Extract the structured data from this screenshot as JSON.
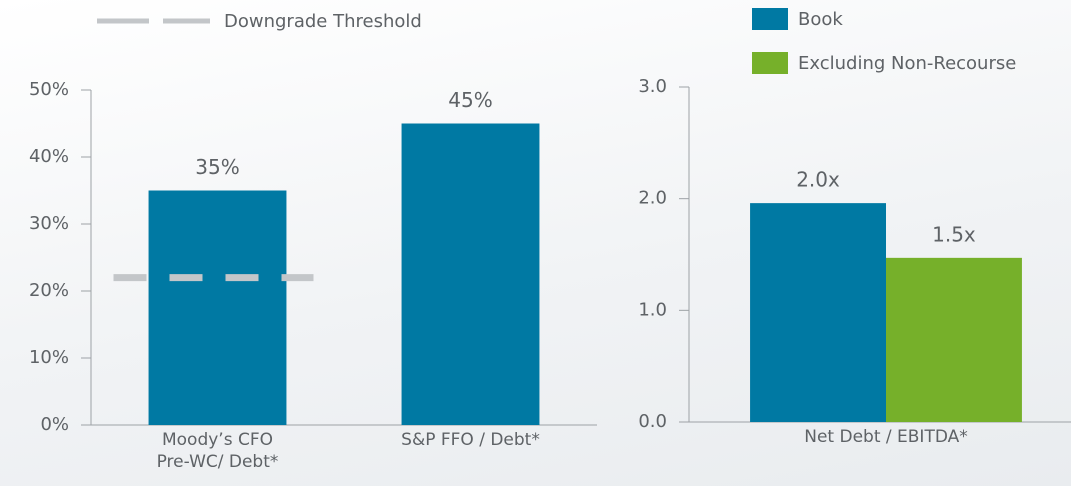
{
  "chart_data": [
    {
      "type": "bar",
      "categories": [
        "Moody’s CFO\nPre-WC/ Debt*",
        "S&P FFO / Debt*"
      ],
      "values": [
        35,
        45
      ],
      "value_labels": [
        "35%",
        "45%"
      ],
      "color": "#0079a3",
      "ylim": [
        0,
        50
      ],
      "yticks": [
        {
          "value": 0,
          "label": "0%"
        },
        {
          "value": 10,
          "label": "10%"
        },
        {
          "value": 20,
          "label": "20%"
        },
        {
          "value": 30,
          "label": "30%"
        },
        {
          "value": 40,
          "label": "40%"
        },
        {
          "value": 50,
          "label": "50%"
        }
      ],
      "threshold": {
        "name": "Downgrade Threshold",
        "value": 22,
        "color": "#c3c6c9"
      }
    },
    {
      "type": "bar",
      "categories": [
        "Net Debt / EBITDA*"
      ],
      "series": [
        {
          "name": "Book",
          "color": "#0079a3",
          "values": [
            1.96
          ],
          "value_labels": [
            "2.0x"
          ]
        },
        {
          "name": "Excluding Non-Recourse",
          "color": "#76b02a",
          "values": [
            1.47
          ],
          "value_labels": [
            "1.5x"
          ]
        }
      ],
      "ylim": [
        0,
        3
      ],
      "yticks": [
        {
          "value": 0,
          "label": "0.0"
        },
        {
          "value": 1,
          "label": "1.0"
        },
        {
          "value": 2,
          "label": "2.0"
        },
        {
          "value": 3,
          "label": "3.0"
        }
      ]
    }
  ]
}
